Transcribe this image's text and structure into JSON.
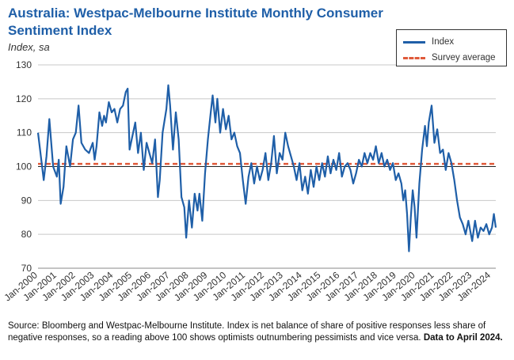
{
  "title": "Australia: Westpac-Melbourne Institute Monthly Consumer Sentiment Index",
  "subtitle": "Index, sa",
  "legend": {
    "series_label": "Index",
    "average_label": "Survey average"
  },
  "source": {
    "text": "Source: Bloomberg and Westpac-Melbourne Institute.  Index is net balance of share of positive responses less share of negative responses, so a reading above 100 shows optimists outnumbering pessimists and vice versa.",
    "bold": "Data to April 2024."
  },
  "colors": {
    "series": "#1f5fa8",
    "average": "#e05a3a",
    "grid": "#c8c8c8",
    "title": "#1f5fa8"
  },
  "chart_data": {
    "type": "line",
    "title": "Australia: Westpac-Melbourne Institute Monthly Consumer Sentiment Index",
    "ylabel": "Index, sa",
    "xlabel": "",
    "ylim": [
      70,
      130
    ],
    "yticks": [
      70,
      80,
      90,
      100,
      110,
      120,
      130
    ],
    "xticks": [
      "Jan-2000",
      "Jan-2001",
      "Jan-2002",
      "Jan-2003",
      "Jan-2004",
      "Jan-2005",
      "Jan-2006",
      "Jan-2007",
      "Jan-2008",
      "Jan-2009",
      "Jan-2010",
      "Jan-2011",
      "Jan-2012",
      "Jan-2013",
      "Jan-2014",
      "Jan-2015",
      "Jan-2016",
      "Jan-2017",
      "Jan-2018",
      "Jan-2019",
      "Jan-2020",
      "Jan-2021",
      "Jan-2022",
      "Jan-2023",
      "Jan-2024"
    ],
    "x_start": "Jan-2000",
    "x_end": "Apr-2024",
    "average": 100.8,
    "series": [
      {
        "name": "Index",
        "keypoints": [
          [
            0.0,
            110
          ],
          [
            0.15,
            103
          ],
          [
            0.3,
            96
          ],
          [
            0.45,
            103
          ],
          [
            0.6,
            114
          ],
          [
            0.8,
            100
          ],
          [
            1.0,
            97
          ],
          [
            1.1,
            102
          ],
          [
            1.2,
            89
          ],
          [
            1.35,
            94
          ],
          [
            1.5,
            106
          ],
          [
            1.7,
            100
          ],
          [
            1.85,
            108
          ],
          [
            2.0,
            110
          ],
          [
            2.15,
            118
          ],
          [
            2.3,
            107
          ],
          [
            2.5,
            105
          ],
          [
            2.7,
            104
          ],
          [
            2.9,
            107
          ],
          [
            3.0,
            102
          ],
          [
            3.1,
            106
          ],
          [
            3.25,
            116
          ],
          [
            3.4,
            112
          ],
          [
            3.5,
            115
          ],
          [
            3.6,
            113
          ],
          [
            3.75,
            119
          ],
          [
            3.9,
            116
          ],
          [
            4.05,
            117
          ],
          [
            4.2,
            113
          ],
          [
            4.35,
            117
          ],
          [
            4.5,
            118
          ],
          [
            4.65,
            122
          ],
          [
            4.75,
            123
          ],
          [
            4.85,
            105
          ],
          [
            5.0,
            109
          ],
          [
            5.15,
            113
          ],
          [
            5.3,
            104
          ],
          [
            5.45,
            110
          ],
          [
            5.6,
            99
          ],
          [
            5.75,
            107
          ],
          [
            5.9,
            104
          ],
          [
            6.05,
            101
          ],
          [
            6.2,
            108
          ],
          [
            6.35,
            91
          ],
          [
            6.45,
            96
          ],
          [
            6.6,
            110
          ],
          [
            6.8,
            117
          ],
          [
            6.9,
            124
          ],
          [
            7.0,
            118
          ],
          [
            7.15,
            105
          ],
          [
            7.3,
            116
          ],
          [
            7.45,
            108
          ],
          [
            7.6,
            91
          ],
          [
            7.75,
            88
          ],
          [
            7.85,
            79
          ],
          [
            8.0,
            90
          ],
          [
            8.15,
            82
          ],
          [
            8.3,
            92
          ],
          [
            8.45,
            87
          ],
          [
            8.55,
            92
          ],
          [
            8.7,
            84
          ],
          [
            8.85,
            98
          ],
          [
            9.0,
            108
          ],
          [
            9.15,
            116
          ],
          [
            9.25,
            121
          ],
          [
            9.4,
            113
          ],
          [
            9.5,
            120
          ],
          [
            9.65,
            110
          ],
          [
            9.8,
            117
          ],
          [
            9.95,
            111
          ],
          [
            10.1,
            115
          ],
          [
            10.25,
            108
          ],
          [
            10.4,
            110
          ],
          [
            10.55,
            106
          ],
          [
            10.7,
            104
          ],
          [
            10.85,
            96
          ],
          [
            11.0,
            89
          ],
          [
            11.15,
            97
          ],
          [
            11.3,
            101
          ],
          [
            11.45,
            95
          ],
          [
            11.6,
            100
          ],
          [
            11.75,
            96
          ],
          [
            11.9,
            99
          ],
          [
            12.05,
            104
          ],
          [
            12.2,
            96
          ],
          [
            12.35,
            101
          ],
          [
            12.5,
            109
          ],
          [
            12.65,
            98
          ],
          [
            12.8,
            104
          ],
          [
            12.95,
            102
          ],
          [
            13.1,
            110
          ],
          [
            13.25,
            106
          ],
          [
            13.4,
            103
          ],
          [
            13.55,
            100
          ],
          [
            13.7,
            96
          ],
          [
            13.85,
            101
          ],
          [
            14.0,
            93
          ],
          [
            14.15,
            97
          ],
          [
            14.3,
            92
          ],
          [
            14.45,
            99
          ],
          [
            14.6,
            94
          ],
          [
            14.75,
            100
          ],
          [
            14.9,
            96
          ],
          [
            15.05,
            101
          ],
          [
            15.2,
            97
          ],
          [
            15.35,
            103
          ],
          [
            15.5,
            98
          ],
          [
            15.65,
            102
          ],
          [
            15.8,
            99
          ],
          [
            15.95,
            104
          ],
          [
            16.1,
            97
          ],
          [
            16.25,
            100
          ],
          [
            16.4,
            101
          ],
          [
            16.55,
            99
          ],
          [
            16.7,
            95
          ],
          [
            16.85,
            98
          ],
          [
            17.0,
            102
          ],
          [
            17.15,
            100
          ],
          [
            17.3,
            104
          ],
          [
            17.45,
            101
          ],
          [
            17.6,
            104
          ],
          [
            17.75,
            102
          ],
          [
            17.9,
            106
          ],
          [
            18.05,
            101
          ],
          [
            18.2,
            104
          ],
          [
            18.35,
            100
          ],
          [
            18.5,
            102
          ],
          [
            18.65,
            99
          ],
          [
            18.8,
            101
          ],
          [
            18.95,
            96
          ],
          [
            19.1,
            98
          ],
          [
            19.25,
            95
          ],
          [
            19.35,
            90
          ],
          [
            19.45,
            93
          ],
          [
            19.55,
            86
          ],
          [
            19.65,
            75
          ],
          [
            19.75,
            85
          ],
          [
            19.85,
            93
          ],
          [
            19.95,
            88
          ],
          [
            20.05,
            79
          ],
          [
            20.2,
            95
          ],
          [
            20.35,
            105
          ],
          [
            20.5,
            112
          ],
          [
            20.6,
            106
          ],
          [
            20.7,
            113
          ],
          [
            20.85,
            118
          ],
          [
            21.0,
            107
          ],
          [
            21.15,
            111
          ],
          [
            21.3,
            104
          ],
          [
            21.45,
            105
          ],
          [
            21.6,
            99
          ],
          [
            21.75,
            104
          ],
          [
            21.9,
            101
          ],
          [
            22.05,
            96
          ],
          [
            22.2,
            90
          ],
          [
            22.35,
            85
          ],
          [
            22.5,
            83
          ],
          [
            22.65,
            80
          ],
          [
            22.8,
            84
          ],
          [
            22.9,
            81
          ],
          [
            23.0,
            78
          ],
          [
            23.15,
            84
          ],
          [
            23.3,
            79
          ],
          [
            23.45,
            82
          ],
          [
            23.6,
            81
          ],
          [
            23.75,
            83
          ],
          [
            23.9,
            80
          ],
          [
            24.05,
            82
          ],
          [
            24.15,
            86
          ],
          [
            24.25,
            82
          ]
        ]
      }
    ]
  }
}
